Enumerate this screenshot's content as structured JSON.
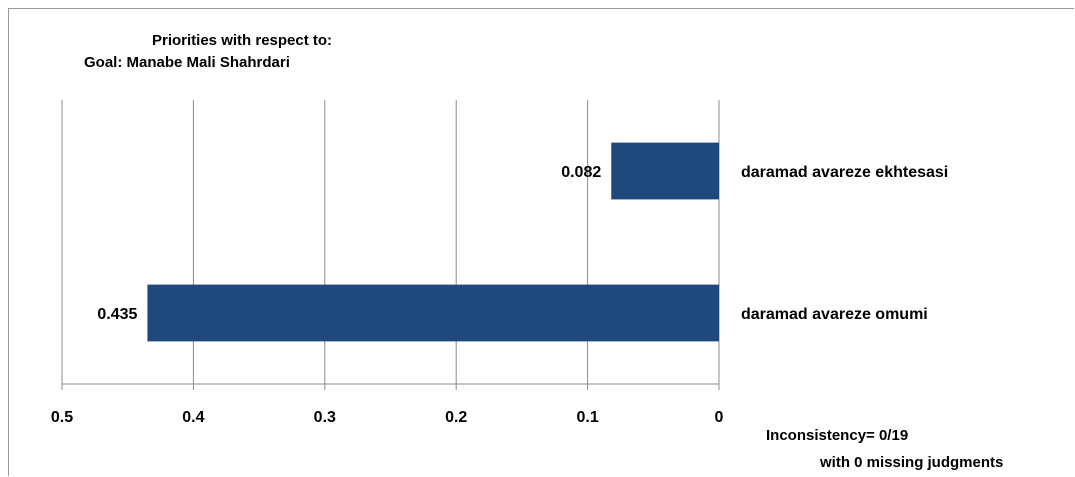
{
  "chart_data": {
    "type": "bar",
    "orientation": "horizontal",
    "x_reversed": true,
    "title_lines": [
      "Priorities with respect to:",
      "Goal: Manabe Mali Shahrdari"
    ],
    "categories": [
      "daramad avareze ekhtesasi",
      "daramad avareze omumi"
    ],
    "values": [
      0.082,
      0.435
    ],
    "value_labels": [
      "0.082",
      "0.435"
    ],
    "xlim": [
      0,
      0.5
    ],
    "x_ticks": [
      0.5,
      0.4,
      0.3,
      0.2,
      0.1,
      0
    ],
    "x_tick_labels": [
      "0.5",
      "0.4",
      "0.3",
      "0.2",
      "0.1",
      "0"
    ],
    "grid": true,
    "bar_color": "#1F497D",
    "notes": [
      "Inconsistency= 0/19",
      "with 0 missing judgments"
    ]
  }
}
